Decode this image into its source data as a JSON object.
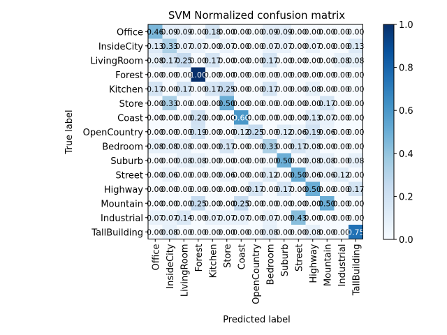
{
  "chart_data": {
    "type": "heatmap",
    "title": "SVM Normalized confusion matrix",
    "xlabel": "Predicted label",
    "ylabel": "True label",
    "colormap": "Blues",
    "colorbar": {
      "min": 0.0,
      "max": 1.0,
      "ticks": [
        "0.0",
        "0.2",
        "0.4",
        "0.6",
        "0.8",
        "1.0"
      ]
    },
    "categories": [
      "Office",
      "InsideCity",
      "LivingRoom",
      "Forest",
      "Kitchen",
      "Store",
      "Coast",
      "OpenCountry",
      "Bedroom",
      "Suburb",
      "Street",
      "Highway",
      "Mountain",
      "Industrial",
      "TallBuilding"
    ],
    "values": [
      [
        0.46,
        0.09,
        0.09,
        0.0,
        0.18,
        0.0,
        0.0,
        0.0,
        0.09,
        0.09,
        0.0,
        0.0,
        0.0,
        0.0,
        0.0
      ],
      [
        0.13,
        0.33,
        0.07,
        0.07,
        0.0,
        0.07,
        0.0,
        0.0,
        0.07,
        0.07,
        0.0,
        0.07,
        0.0,
        0.0,
        0.13
      ],
      [
        0.08,
        0.17,
        0.25,
        0.0,
        0.17,
        0.0,
        0.0,
        0.0,
        0.17,
        0.0,
        0.0,
        0.0,
        0.0,
        0.08,
        0.08
      ],
      [
        0.0,
        0.0,
        0.0,
        1.0,
        0.0,
        0.0,
        0.0,
        0.0,
        0.0,
        0.0,
        0.0,
        0.0,
        0.0,
        0.0,
        0.0
      ],
      [
        0.17,
        0.0,
        0.17,
        0.0,
        0.17,
        0.25,
        0.0,
        0.0,
        0.17,
        0.0,
        0.0,
        0.08,
        0.0,
        0.0,
        0.0
      ],
      [
        0.0,
        0.33,
        0.0,
        0.0,
        0.0,
        0.5,
        0.0,
        0.0,
        0.0,
        0.0,
        0.0,
        0.0,
        0.17,
        0.0,
        0.0
      ],
      [
        0.0,
        0.0,
        0.0,
        0.2,
        0.0,
        0.0,
        0.6,
        0.0,
        0.0,
        0.0,
        0.0,
        0.13,
        0.07,
        0.0,
        0.0
      ],
      [
        0.0,
        0.0,
        0.0,
        0.19,
        0.0,
        0.0,
        0.12,
        0.25,
        0.0,
        0.12,
        0.06,
        0.19,
        0.06,
        0.0,
        0.0
      ],
      [
        0.08,
        0.08,
        0.08,
        0.0,
        0.0,
        0.17,
        0.0,
        0.0,
        0.33,
        0.0,
        0.17,
        0.08,
        0.0,
        0.0,
        0.0
      ],
      [
        0.0,
        0.0,
        0.08,
        0.08,
        0.0,
        0.0,
        0.0,
        0.0,
        0.0,
        0.5,
        0.0,
        0.08,
        0.08,
        0.0,
        0.08
      ],
      [
        0.0,
        0.06,
        0.0,
        0.0,
        0.0,
        0.06,
        0.0,
        0.0,
        0.12,
        0.0,
        0.5,
        0.06,
        0.06,
        0.12,
        0.0
      ],
      [
        0.0,
        0.0,
        0.0,
        0.0,
        0.0,
        0.0,
        0.0,
        0.17,
        0.0,
        0.17,
        0.0,
        0.5,
        0.0,
        0.0,
        0.17
      ],
      [
        0.0,
        0.0,
        0.0,
        0.25,
        0.0,
        0.0,
        0.25,
        0.0,
        0.0,
        0.0,
        0.0,
        0.0,
        0.5,
        0.0,
        0.0
      ],
      [
        0.07,
        0.07,
        0.14,
        0.0,
        0.07,
        0.07,
        0.07,
        0.0,
        0.07,
        0.0,
        0.43,
        0.0,
        0.0,
        0.0,
        0.0
      ],
      [
        0.0,
        0.08,
        0.0,
        0.0,
        0.0,
        0.0,
        0.0,
        0.0,
        0.08,
        0.0,
        0.0,
        0.08,
        0.0,
        0.0,
        0.75
      ]
    ]
  }
}
